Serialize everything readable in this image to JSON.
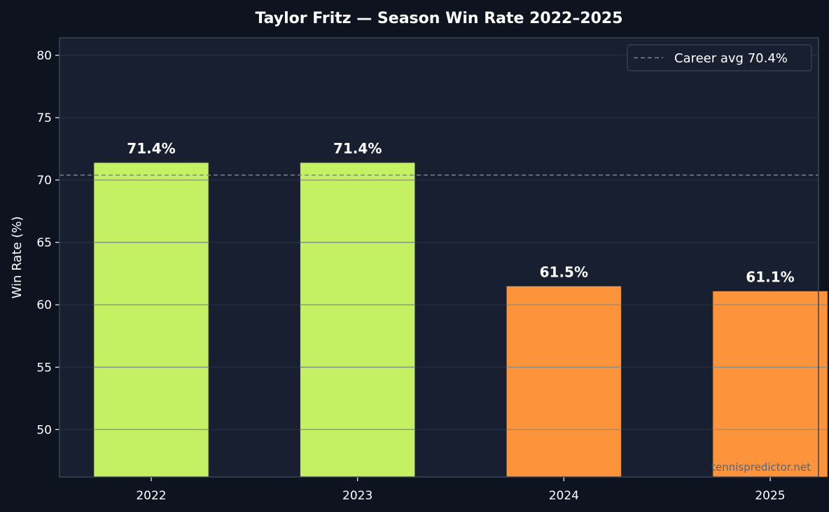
{
  "chart_data": {
    "type": "bar",
    "title": "Taylor Fritz — Season Win Rate 2022–2025",
    "xlabel": "",
    "ylabel": "Win Rate (%)",
    "categories": [
      "2022",
      "2023",
      "2024",
      "2025"
    ],
    "values": [
      71.4,
      71.4,
      61.5,
      61.1
    ],
    "data_labels": [
      "71.4%",
      "71.4%",
      "61.5%",
      "61.1%"
    ],
    "bar_colors": [
      "#c4f063",
      "#c4f063",
      "#fd943b",
      "#fd943b"
    ],
    "ylim": [
      46.2,
      81.4
    ],
    "yticks": [
      50,
      55,
      60,
      65,
      70,
      75,
      80
    ],
    "grid": true,
    "reference_line": {
      "value": 70.4,
      "label": "Career avg 70.4%",
      "style": "dashed",
      "color": "#7a8391"
    },
    "legend_position": "top-right",
    "watermark": "tennispredictor.net"
  },
  "colors": {
    "page_background": "#0e1320",
    "plot_background": "#181f30",
    "grid": "#243042",
    "axes_border": "#3a4454",
    "bar_gridline_overlay": "#8a8f8f"
  }
}
